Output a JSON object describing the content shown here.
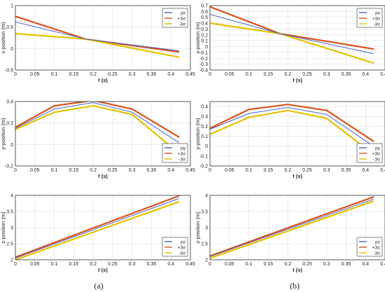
{
  "figure": {
    "captions": [
      "(a)",
      "(b)"
    ],
    "colors": {
      "nominal": "#4a63c9",
      "plus3": "#d9531e",
      "minus3": "#e3c200",
      "grid": "#d9d9d9"
    }
  },
  "chart_data": [
    {
      "id": "a-x",
      "column": "a",
      "type": "line",
      "xlabel": "t (s)",
      "ylabel": "x-position (m)",
      "xlim": [
        0,
        0.45
      ],
      "ylim": [
        -0.5,
        1
      ],
      "xticks": [
        "0",
        "0.05",
        "0.1",
        "0.15",
        "0.2",
        "0.25",
        "0.3",
        "0.35",
        "0.4",
        "0.45"
      ],
      "yticks": [
        "-0.5",
        "0",
        "0.5",
        "1"
      ],
      "legend": {
        "position": "top-right",
        "entries": [
          "px",
          "+3σ",
          "-3σ"
        ]
      },
      "series": [
        {
          "name": "px",
          "x": [
            0,
            0.18,
            0.42
          ],
          "y": [
            0.62,
            0.22,
            -0.05
          ]
        },
        {
          "name": "+3σ",
          "x": [
            0,
            0.18,
            0.42
          ],
          "y": [
            0.75,
            0.22,
            -0.08
          ]
        },
        {
          "name": "-3σ",
          "x": [
            0,
            0.18,
            0.42
          ],
          "y": [
            0.35,
            0.22,
            -0.2
          ]
        }
      ]
    },
    {
      "id": "b-x",
      "column": "b",
      "type": "line",
      "xlabel": "t (s)",
      "ylabel": "x-position (m)",
      "xlim": [
        0,
        0.45
      ],
      "ylim": [
        -0.4,
        0.7
      ],
      "xticks": [
        "0",
        "0.05",
        "0.1",
        "0.15",
        "0.2",
        "0.25",
        "0.3",
        "0.35",
        "0.4",
        "0.45"
      ],
      "yticks": [
        "-0.4",
        "-0.3",
        "-0.2",
        "-0.1",
        "0",
        "0.1",
        "0.2",
        "0.3",
        "0.4",
        "0.5",
        "0.6",
        "0.7"
      ],
      "legend": {
        "position": "top-right",
        "entries": [
          "px",
          "+3σ",
          "-3σ"
        ]
      },
      "series": [
        {
          "name": "px",
          "x": [
            0,
            0.18,
            0.42
          ],
          "y": [
            0.55,
            0.22,
            -0.12
          ]
        },
        {
          "name": "+3σ",
          "x": [
            0,
            0.18,
            0.42
          ],
          "y": [
            0.68,
            0.22,
            -0.04
          ]
        },
        {
          "name": "-3σ",
          "x": [
            0,
            0.18,
            0.42
          ],
          "y": [
            0.4,
            0.22,
            -0.28
          ]
        }
      ]
    },
    {
      "id": "a-y",
      "column": "a",
      "type": "line",
      "xlabel": "t (s)",
      "ylabel": "y-position (m)",
      "xlim": [
        0,
        0.45
      ],
      "ylim": [
        -0.2,
        0.4
      ],
      "xticks": [
        "0",
        "0.05",
        "0.1",
        "0.15",
        "0.2",
        "0.25",
        "0.3",
        "0.35",
        "0.4",
        "0.45"
      ],
      "yticks": [
        "-0.2",
        "0",
        "0.2",
        "0.4"
      ],
      "legend": {
        "position": "bottom-right",
        "entries": [
          "py",
          "+3σ",
          "-3σ"
        ]
      },
      "series": [
        {
          "name": "py",
          "x": [
            0,
            0.1,
            0.2,
            0.3,
            0.42
          ],
          "y": [
            0.15,
            0.33,
            0.39,
            0.3,
            0.02
          ]
        },
        {
          "name": "+3σ",
          "x": [
            0,
            0.1,
            0.2,
            0.3,
            0.42
          ],
          "y": [
            0.16,
            0.36,
            0.41,
            0.33,
            0.07
          ]
        },
        {
          "name": "-3σ",
          "x": [
            0,
            0.1,
            0.2,
            0.3,
            0.42
          ],
          "y": [
            0.14,
            0.3,
            0.36,
            0.28,
            -0.08
          ]
        }
      ]
    },
    {
      "id": "b-y",
      "column": "b",
      "type": "line",
      "xlabel": "t (s)",
      "ylabel": "y-position (m)",
      "xlim": [
        0,
        0.45
      ],
      "ylim": [
        -0.2,
        0.45
      ],
      "xticks": [
        "0",
        "0.05",
        "0.1",
        "0.15",
        "0.2",
        "0.25",
        "0.3",
        "0.35",
        "0.4",
        "0.45"
      ],
      "yticks": [
        "-0.2",
        "-0.1",
        "0",
        "0.1",
        "0.2",
        "0.3",
        "0.4"
      ],
      "legend": {
        "position": "bottom-right",
        "entries": [
          "py",
          "+3σ",
          "-3σ"
        ]
      },
      "series": [
        {
          "name": "py",
          "x": [
            0,
            0.1,
            0.2,
            0.3,
            0.42
          ],
          "y": [
            0.17,
            0.33,
            0.39,
            0.32,
            0.0
          ]
        },
        {
          "name": "+3σ",
          "x": [
            0,
            0.1,
            0.2,
            0.3,
            0.42
          ],
          "y": [
            0.18,
            0.37,
            0.42,
            0.36,
            0.05
          ]
        },
        {
          "name": "-3σ",
          "x": [
            0,
            0.1,
            0.2,
            0.3,
            0.42
          ],
          "y": [
            0.12,
            0.29,
            0.36,
            0.28,
            -0.08
          ]
        }
      ]
    },
    {
      "id": "a-z",
      "column": "a",
      "type": "line",
      "xlabel": "t (s)",
      "ylabel": "z-position (m)",
      "xlim": [
        0,
        0.45
      ],
      "ylim": [
        2,
        4
      ],
      "xticks": [
        "0",
        "0.05",
        "0.1",
        "0.15",
        "0.2",
        "0.25",
        "0.3",
        "0.35",
        "0.4",
        "0.45"
      ],
      "yticks": [
        "2",
        "2.5",
        "3",
        "3.5",
        "4"
      ],
      "legend": {
        "position": "bottom-right",
        "entries": [
          "pz",
          "+3σ",
          "-3σ"
        ]
      },
      "series": [
        {
          "name": "pz",
          "x": [
            0,
            0.42
          ],
          "y": [
            2.05,
            3.9
          ]
        },
        {
          "name": "+3σ",
          "x": [
            0,
            0.42
          ],
          "y": [
            2.08,
            3.98
          ]
        },
        {
          "name": "-3σ",
          "x": [
            0,
            0.42
          ],
          "y": [
            2.0,
            3.8
          ]
        }
      ]
    },
    {
      "id": "b-z",
      "column": "b",
      "type": "line",
      "xlabel": "t (s)",
      "ylabel": "z-position (m)",
      "xlim": [
        0,
        0.45
      ],
      "ylim": [
        2,
        4
      ],
      "xticks": [
        "0",
        "0.05",
        "0.1",
        "0.15",
        "0.2",
        "0.25",
        "0.3",
        "0.35",
        "0.4",
        "0.45"
      ],
      "yticks": [
        "2",
        "2.5",
        "3",
        "3.5",
        "4"
      ],
      "legend": {
        "position": "bottom-right",
        "entries": [
          "pz",
          "+3σ",
          "-3σ"
        ]
      },
      "series": [
        {
          "name": "pz",
          "x": [
            0,
            0.42
          ],
          "y": [
            2.1,
            3.88
          ]
        },
        {
          "name": "+3σ",
          "x": [
            0,
            0.42
          ],
          "y": [
            2.12,
            3.95
          ]
        },
        {
          "name": "-3σ",
          "x": [
            0,
            0.42
          ],
          "y": [
            2.05,
            3.82
          ]
        }
      ]
    }
  ]
}
